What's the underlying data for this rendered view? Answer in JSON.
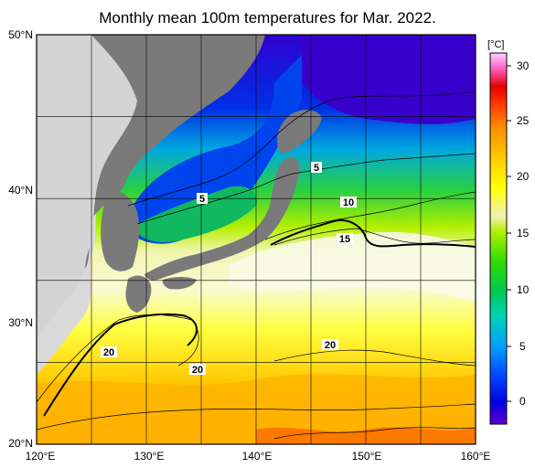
{
  "title": "Monthly mean 100m temperatures for Mar. 2022.",
  "lat_labels": [
    "50°N",
    "40°N",
    "30°N",
    "20°N"
  ],
  "lon_labels": [
    "120°E",
    "130°E",
    "140°E",
    "150°E",
    "160°E"
  ],
  "colorbar": {
    "unit": "[°C]",
    "tick_labels": [
      "30",
      "25",
      "20",
      "15",
      "10",
      "5",
      "0"
    ],
    "range": [
      -2,
      32
    ],
    "colors": [
      "#5a00c8",
      "#0000e6",
      "#0050ff",
      "#00a0ff",
      "#00d2b4",
      "#00c850",
      "#32dc00",
      "#b4f000",
      "#f0f064",
      "#ffff00",
      "#ffd200",
      "#ff9600",
      "#ff3c00",
      "#e60000",
      "#ff64c8",
      "#ffd2ff"
    ]
  },
  "contour_labels": {
    "sea_of_japan_5": "5",
    "kuroshio_5": "5",
    "contour_10": "10",
    "contour_15": "15",
    "west_20": "20",
    "south_20": "20",
    "east_20": "20"
  },
  "map": {
    "land_color": "#7a7a7a",
    "other_land_color": "#d9d9d9",
    "region": "120°E–160°E, 20°N–50°N"
  }
}
